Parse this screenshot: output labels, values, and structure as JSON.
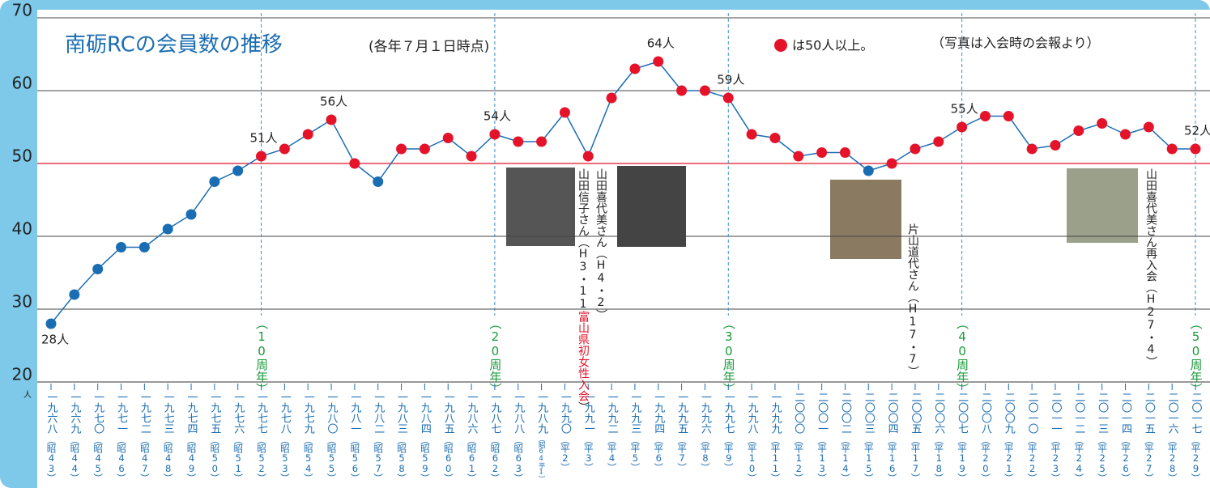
{
  "chart_data": {
    "type": "line",
    "title": "南砺RCの会員数の推移",
    "subtitle": "(各年７月１日時点)",
    "legend_text": "は50人以上。",
    "note": "（写真は入会時の会報より）",
    "y_unit": "人",
    "marker_threshold": 50,
    "line_color": "#1b6db3",
    "above_color": "#e5132a",
    "below_color": "#1b6db3",
    "threshold_color": "#e5132a",
    "categories": [
      "一九六八",
      "一九六九",
      "一九七〇",
      "一九七一",
      "一九七二",
      "一九七三",
      "一九七四",
      "一九七五",
      "一九七六",
      "一九七七",
      "一九七八",
      "一九七九",
      "一九八〇",
      "一九八一",
      "一九八二",
      "一九八三",
      "一九八四",
      "一九八五",
      "一九八六",
      "一九八七",
      "一九八八",
      "一九八九",
      "一九九〇",
      "一九九一",
      "一九九二",
      "一九九三",
      "一九九四",
      "一九九五",
      "一九九六",
      "一九九七",
      "一九九八",
      "一九九九",
      "二〇〇〇",
      "二〇〇一",
      "二〇〇二",
      "二〇〇三",
      "二〇〇四",
      "二〇〇五",
      "二〇〇六",
      "二〇〇七",
      "二〇〇八",
      "二〇〇九",
      "二〇一〇",
      "二〇一一",
      "二〇一二",
      "二〇一三",
      "二〇一四",
      "二〇一五",
      "二〇一六",
      "二〇一七"
    ],
    "era_labels": [
      "（昭43）",
      "（昭44）",
      "（昭45）",
      "（昭46）",
      "（昭47）",
      "（昭48）",
      "（昭49）",
      "（昭50）",
      "（昭51）",
      "（昭52）",
      "（昭53）",
      "（昭54）",
      "（昭55）",
      "（昭56）",
      "（昭57）",
      "（昭58）",
      "（昭59）",
      "（昭60）",
      "（昭61）",
      "（昭62）",
      "（昭63）",
      "（昭64平1）",
      "（平2）",
      "（平3）",
      "（平4）",
      "（平5）",
      "（平6）",
      "（平7）",
      "（平8）",
      "（平9）",
      "（平10）",
      "（平11）",
      "（平12）",
      "（平13）",
      "（平14）",
      "（平15）",
      "（平16）",
      "（平17）",
      "（平18）",
      "（平19）",
      "（平20）",
      "（平21）",
      "（平22）",
      "（平23）",
      "（平24）",
      "（平25）",
      "（平26）",
      "（平27）",
      "（平28）",
      "（平29）"
    ],
    "values": [
      28,
      32,
      35.5,
      38.5,
      38.5,
      41,
      43,
      47.5,
      49,
      51,
      52,
      54,
      56,
      50,
      47.5,
      52,
      52,
      53.5,
      51,
      54,
      53,
      53,
      57,
      51,
      59,
      63,
      64,
      60,
      60,
      59,
      54,
      53.5,
      51,
      51.5,
      51.5,
      49,
      50,
      52,
      53,
      55,
      56.5,
      56.5,
      52,
      52.5,
      54.5,
      55.5,
      54,
      55,
      52,
      52
    ],
    "value_labels": [
      "28人",
      null,
      null,
      null,
      null,
      null,
      null,
      null,
      null,
      "51人",
      null,
      null,
      "56人",
      null,
      null,
      null,
      null,
      null,
      null,
      "54人",
      null,
      null,
      null,
      null,
      null,
      null,
      "64人",
      null,
      null,
      "59人",
      null,
      null,
      null,
      null,
      null,
      null,
      null,
      null,
      null,
      "55人",
      null,
      null,
      null,
      null,
      null,
      null,
      null,
      null,
      null,
      "52人"
    ],
    "ylim": [
      20,
      70
    ],
    "yticks": [
      20,
      30,
      40,
      50,
      60,
      70
    ],
    "grid": true,
    "anniversaries": [
      {
        "category": "一九七七",
        "label": "（10周年）"
      },
      {
        "category": "一九八七",
        "label": "（20周年）"
      },
      {
        "category": "一九九七",
        "label": "（30周年）"
      },
      {
        "category": "二〇〇七",
        "label": "（40周年）"
      },
      {
        "category": "二〇一七",
        "label": "（50周年）"
      }
    ],
    "photo_captions": [
      {
        "parts": [
          "山田信子さん（H3・11",
          "富山県初女性入会",
          "）"
        ]
      },
      {
        "parts": [
          "山田喜代美さん（H4・2）"
        ]
      },
      {
        "parts": [
          "片山道代さん（H17・7）"
        ]
      },
      {
        "parts": [
          "山田喜代美さん再入会（H27・4）"
        ]
      }
    ]
  }
}
